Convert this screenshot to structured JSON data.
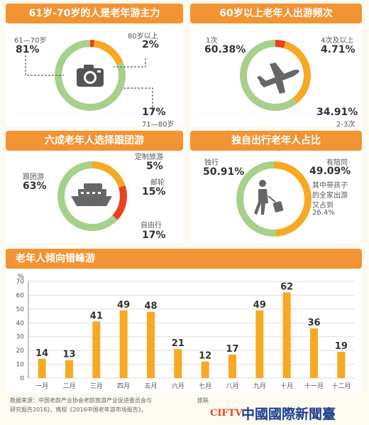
{
  "colors": {
    "accent": "#f29433",
    "green": "#a8d08a",
    "red": "#e8431c",
    "bar": "#f7a923",
    "text": "#333333"
  },
  "panels": {
    "age": {
      "title": "61岁-70岁的人是老年游主力",
      "icon": "camera-icon",
      "labels": [
        {
          "name": "61—70岁",
          "value": "81%"
        },
        {
          "name": "80岁以上",
          "value": "2%"
        },
        {
          "name": "71—80岁",
          "value": "17%"
        }
      ]
    },
    "freq": {
      "title": "60岁以上老年人出游频次",
      "icon": "airplane-icon",
      "labels": [
        {
          "name": "1次",
          "value": "60.38%"
        },
        {
          "name": "4次及以上",
          "value": "4.71%"
        },
        {
          "name": "2-3次",
          "value": "34.91%"
        }
      ]
    },
    "tour": {
      "title": "六成老年人选择跟团游",
      "icon": "cruise-ship-icon",
      "labels": [
        {
          "name": "跟团游",
          "value": "63%"
        },
        {
          "name": "定制旅游",
          "value": "5%"
        },
        {
          "name": "邮轮",
          "value": "15%"
        },
        {
          "name": "自由行",
          "value": "17%"
        }
      ]
    },
    "solo": {
      "title": "独自出行老年人占比",
      "icon": "traveler-luggage-icon",
      "labels": [
        {
          "name": "独行",
          "value": "50.91%"
        },
        {
          "name": "有陪同",
          "value": "49.09%"
        }
      ],
      "note_lines": [
        "其中带孩子",
        "的全家出游",
        "又占到",
        "26.4%"
      ]
    }
  },
  "chart_data": [
    {
      "type": "pie",
      "title": "61岁-70岁的人是老年游主力",
      "categories": [
        "61—70岁",
        "80岁以上",
        "71—80岁"
      ],
      "values": [
        81,
        2,
        17
      ],
      "colors": [
        "#a8d08a",
        "#e8431c",
        "#f7a923"
      ]
    },
    {
      "type": "pie",
      "title": "60岁以上老年人出游频次",
      "categories": [
        "1次",
        "4次及以上",
        "2-3次"
      ],
      "values": [
        60.38,
        4.71,
        34.91
      ],
      "colors": [
        "#a8d08a",
        "#e8431c",
        "#f7a923"
      ]
    },
    {
      "type": "pie",
      "title": "六成老年人选择跟团游",
      "categories": [
        "跟团游",
        "定制旅游",
        "邮轮",
        "自由行"
      ],
      "values": [
        63,
        5,
        15,
        17
      ],
      "colors": [
        "#a8d08a",
        "#f7a923",
        "#f7a923",
        "#e8431c"
      ]
    },
    {
      "type": "pie",
      "title": "独自出行老年人占比",
      "categories": [
        "独行",
        "有陪同"
      ],
      "values": [
        50.91,
        49.09
      ],
      "colors": [
        "#a8d08a",
        "#f7a923"
      ]
    },
    {
      "type": "bar",
      "title": "老年人倾向错峰游",
      "ylabel": "%",
      "categories": [
        "一月",
        "二月",
        "三月",
        "四月",
        "五月",
        "六月",
        "七月",
        "八月",
        "九月",
        "十月",
        "十一月",
        "十二月"
      ],
      "values": [
        14,
        13,
        41,
        49,
        48,
        21,
        12,
        17,
        49,
        62,
        36,
        19
      ],
      "yticks": [
        0,
        10,
        20,
        30,
        40,
        50,
        60,
        70
      ],
      "ylim": [
        0,
        70
      ],
      "grid": true
    }
  ],
  "source": {
    "line1": "数据来源：中国老龄产业协会老龄旅游产业促进委员会与",
    "line1b": "旅联",
    "line2": "研究报告2016》，携程《2016中国老年游市场报告》，"
  },
  "watermark": {
    "brand": "CIFTV",
    "text": "中國國際新聞臺"
  }
}
